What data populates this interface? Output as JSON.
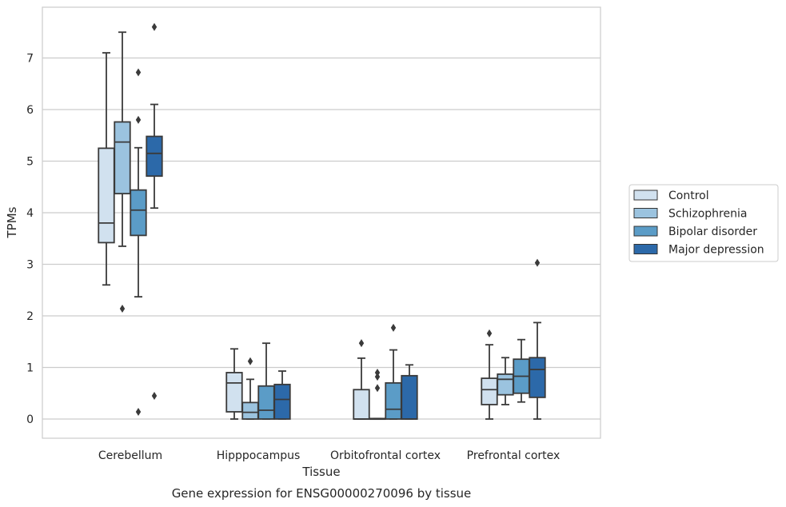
{
  "chart_data": {
    "type": "box",
    "xlabel": "Tissue",
    "ylabel": "TPMs",
    "caption": "Gene expression for ENSG00000270096 by tissue",
    "ylim": [
      -0.37,
      7.97
    ],
    "yticks": [
      "0",
      "1",
      "2",
      "3",
      "4",
      "5",
      "6",
      "7"
    ],
    "grid": "horizontal",
    "legend_position": "right",
    "categories": [
      "Cerebellum",
      "Hipppocampus",
      "Orbitofrontal cortex",
      "Prefrontal cortex"
    ],
    "series": [
      {
        "name": "Control",
        "color": "#d1e1ef",
        "boxes": [
          {
            "whisker_low": 2.6,
            "q1": 3.42,
            "median": 3.8,
            "q3": 5.25,
            "whisker_high": 7.1,
            "outliers": []
          },
          {
            "whisker_low": 0.0,
            "q1": 0.14,
            "median": 0.7,
            "q3": 0.9,
            "whisker_high": 1.36,
            "outliers": []
          },
          {
            "whisker_low": 0.0,
            "q1": 0.0,
            "median": 0.0,
            "q3": 0.57,
            "whisker_high": 1.18,
            "outliers": [
              1.47
            ]
          },
          {
            "whisker_low": 0.0,
            "q1": 0.28,
            "median": 0.57,
            "q3": 0.79,
            "whisker_high": 1.44,
            "outliers": [
              1.66
            ]
          }
        ]
      },
      {
        "name": "Schizophrenia",
        "color": "#9bc3df",
        "boxes": [
          {
            "whisker_low": 3.35,
            "q1": 4.37,
            "median": 5.37,
            "q3": 5.76,
            "whisker_high": 7.5,
            "outliers": [
              2.14
            ]
          },
          {
            "whisker_low": 0.0,
            "q1": 0.0,
            "median": 0.13,
            "q3": 0.32,
            "whisker_high": 0.77,
            "outliers": [
              1.12
            ]
          },
          {
            "whisker_low": 0.0,
            "q1": 0.0,
            "median": 0.0,
            "q3": 0.01,
            "whisker_high": 0.01,
            "outliers": [
              0.6,
              0.82,
              0.9
            ]
          },
          {
            "whisker_low": 0.28,
            "q1": 0.47,
            "median": 0.77,
            "q3": 0.87,
            "whisker_high": 1.19,
            "outliers": []
          }
        ]
      },
      {
        "name": "Bipolar disorder",
        "color": "#5b9cc7",
        "boxes": [
          {
            "whisker_low": 2.37,
            "q1": 3.56,
            "median": 4.05,
            "q3": 4.44,
            "whisker_high": 5.26,
            "outliers": [
              0.14,
              5.8,
              6.72
            ]
          },
          {
            "whisker_low": 0.0,
            "q1": 0.0,
            "median": 0.17,
            "q3": 0.64,
            "whisker_high": 1.47,
            "outliers": []
          },
          {
            "whisker_low": 0.0,
            "q1": 0.0,
            "median": 0.19,
            "q3": 0.7,
            "whisker_high": 1.34,
            "outliers": [
              1.77
            ]
          },
          {
            "whisker_low": 0.33,
            "q1": 0.5,
            "median": 0.83,
            "q3": 1.16,
            "whisker_high": 1.54,
            "outliers": []
          }
        ]
      },
      {
        "name": "Major depression",
        "color": "#2c69a9",
        "boxes": [
          {
            "whisker_low": 4.09,
            "q1": 4.71,
            "median": 5.15,
            "q3": 5.48,
            "whisker_high": 6.1,
            "outliers": [
              0.45,
              7.6
            ]
          },
          {
            "whisker_low": 0.0,
            "q1": 0.0,
            "median": 0.38,
            "q3": 0.67,
            "whisker_high": 0.93,
            "outliers": []
          },
          {
            "whisker_low": 0.0,
            "q1": 0.0,
            "median": 0.0,
            "q3": 0.84,
            "whisker_high": 1.05,
            "outliers": []
          },
          {
            "whisker_low": 0.0,
            "q1": 0.42,
            "median": 0.96,
            "q3": 1.19,
            "whisker_high": 1.87,
            "outliers": [
              3.03
            ]
          }
        ]
      }
    ]
  }
}
